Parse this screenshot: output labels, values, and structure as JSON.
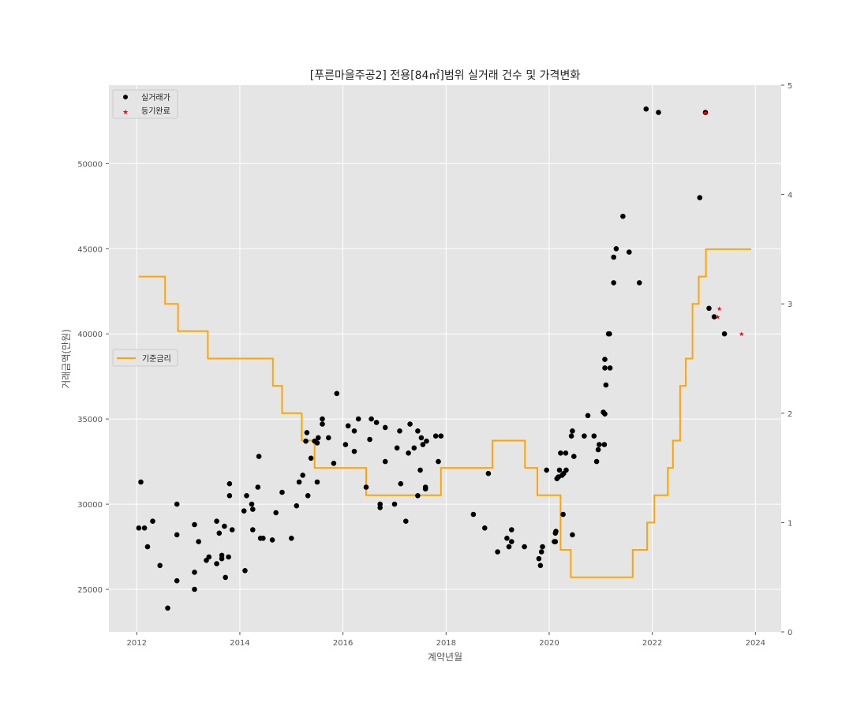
{
  "chart_data": {
    "type": "scatter",
    "title": "[푸른마을주공2] 전용[84㎡]범위 실거래 건수 및 가격변화",
    "xlabel": "계약년월",
    "ylabel": "거래금액(만원)",
    "xlim": [
      2011.46,
      2024.5
    ],
    "ylim": [
      22500,
      54600
    ],
    "y2lim": [
      0,
      5
    ],
    "x_ticks": [
      2012,
      2014,
      2016,
      2018,
      2020,
      2022,
      2024
    ],
    "y_ticks": [
      25000,
      30000,
      35000,
      40000,
      45000,
      50000
    ],
    "y2_ticks": [
      0,
      1,
      2,
      3,
      4,
      5
    ],
    "grid": true,
    "colors": {
      "plot_bg": "#e5e5e5",
      "grid": "#ffffff",
      "trade": "#000000",
      "registered": "#ff0000",
      "rate": "#ffa500"
    },
    "legend_top": {
      "position": "top-left",
      "entries": [
        "실거래가",
        "등기완료"
      ]
    },
    "legend_rate": {
      "position": "center-left",
      "entries": [
        "기준금리"
      ]
    },
    "series": [
      {
        "name": "실거래가",
        "kind": "scatter",
        "points": [
          [
            2012.04,
            28600
          ],
          [
            2012.08,
            31300
          ],
          [
            2012.15,
            28600
          ],
          [
            2012.21,
            27500
          ],
          [
            2012.31,
            29000
          ],
          [
            2012.45,
            26400
          ],
          [
            2012.6,
            23900
          ],
          [
            2012.78,
            30000
          ],
          [
            2012.78,
            28200
          ],
          [
            2012.78,
            25500
          ],
          [
            2013.12,
            28800
          ],
          [
            2013.12,
            26000
          ],
          [
            2013.12,
            25000
          ],
          [
            2013.2,
            27800
          ],
          [
            2013.35,
            26700
          ],
          [
            2013.4,
            26900
          ],
          [
            2013.55,
            29000
          ],
          [
            2013.55,
            26500
          ],
          [
            2013.6,
            28300
          ],
          [
            2013.65,
            26800
          ],
          [
            2013.65,
            27000
          ],
          [
            2013.7,
            28700
          ],
          [
            2013.72,
            25700
          ],
          [
            2013.78,
            26900
          ],
          [
            2013.8,
            30500
          ],
          [
            2013.8,
            31200
          ],
          [
            2013.85,
            28500
          ],
          [
            2014.08,
            29600
          ],
          [
            2014.1,
            26100
          ],
          [
            2014.13,
            30500
          ],
          [
            2014.23,
            30000
          ],
          [
            2014.25,
            29700
          ],
          [
            2014.25,
            28500
          ],
          [
            2014.35,
            31000
          ],
          [
            2014.37,
            32800
          ],
          [
            2014.4,
            28000
          ],
          [
            2014.45,
            28000
          ],
          [
            2014.63,
            27900
          ],
          [
            2014.7,
            29500
          ],
          [
            2014.82,
            30700
          ],
          [
            2015.0,
            28000
          ],
          [
            2015.1,
            29900
          ],
          [
            2015.15,
            31300
          ],
          [
            2015.22,
            31700
          ],
          [
            2015.28,
            33700
          ],
          [
            2015.3,
            34200
          ],
          [
            2015.32,
            30500
          ],
          [
            2015.38,
            32700
          ],
          [
            2015.45,
            33700
          ],
          [
            2015.5,
            33600
          ],
          [
            2015.5,
            31300
          ],
          [
            2015.52,
            33900
          ],
          [
            2015.6,
            34700
          ],
          [
            2015.6,
            35000
          ],
          [
            2015.72,
            33900
          ],
          [
            2015.82,
            32400
          ],
          [
            2015.88,
            36500
          ],
          [
            2016.05,
            33500
          ],
          [
            2016.1,
            34600
          ],
          [
            2016.22,
            34300
          ],
          [
            2016.22,
            33100
          ],
          [
            2016.3,
            35000
          ],
          [
            2016.45,
            31000
          ],
          [
            2016.52,
            33800
          ],
          [
            2016.55,
            35000
          ],
          [
            2016.65,
            34800
          ],
          [
            2016.72,
            29800
          ],
          [
            2016.72,
            30000
          ],
          [
            2016.82,
            34500
          ],
          [
            2016.82,
            32500
          ],
          [
            2017.0,
            30000
          ],
          [
            2017.05,
            33300
          ],
          [
            2017.1,
            34300
          ],
          [
            2017.12,
            31200
          ],
          [
            2017.22,
            29000
          ],
          [
            2017.27,
            33000
          ],
          [
            2017.3,
            34700
          ],
          [
            2017.38,
            33300
          ],
          [
            2017.45,
            34300
          ],
          [
            2017.45,
            30500
          ],
          [
            2017.5,
            32000
          ],
          [
            2017.52,
            33900
          ],
          [
            2017.55,
            33500
          ],
          [
            2017.6,
            31000
          ],
          [
            2017.6,
            30900
          ],
          [
            2017.62,
            33700
          ],
          [
            2017.8,
            34000
          ],
          [
            2017.85,
            32500
          ],
          [
            2017.9,
            34000
          ],
          [
            2018.53,
            29400
          ],
          [
            2018.75,
            28600
          ],
          [
            2018.82,
            31800
          ],
          [
            2019.0,
            27200
          ],
          [
            2019.18,
            28000
          ],
          [
            2019.22,
            27500
          ],
          [
            2019.27,
            28500
          ],
          [
            2019.27,
            27800
          ],
          [
            2019.52,
            27500
          ],
          [
            2019.8,
            26800
          ],
          [
            2019.83,
            26400
          ],
          [
            2019.85,
            27200
          ],
          [
            2019.87,
            27500
          ],
          [
            2019.95,
            32000
          ],
          [
            2020.1,
            27800
          ],
          [
            2020.12,
            27800
          ],
          [
            2020.12,
            28300
          ],
          [
            2020.13,
            28400
          ],
          [
            2020.15,
            31500
          ],
          [
            2020.18,
            31600
          ],
          [
            2020.2,
            32000
          ],
          [
            2020.22,
            33000
          ],
          [
            2020.25,
            31700
          ],
          [
            2020.27,
            29400
          ],
          [
            2020.28,
            31800
          ],
          [
            2020.32,
            33000
          ],
          [
            2020.33,
            32000
          ],
          [
            2020.43,
            34000
          ],
          [
            2020.45,
            28200
          ],
          [
            2020.45,
            34300
          ],
          [
            2020.48,
            32800
          ],
          [
            2020.68,
            34000
          ],
          [
            2020.75,
            35200
          ],
          [
            2020.87,
            34000
          ],
          [
            2020.92,
            32500
          ],
          [
            2020.95,
            33200
          ],
          [
            2020.97,
            33500
          ],
          [
            2021.05,
            35400
          ],
          [
            2021.07,
            33500
          ],
          [
            2021.08,
            38000
          ],
          [
            2021.08,
            38500
          ],
          [
            2021.08,
            35300
          ],
          [
            2021.1,
            37000
          ],
          [
            2021.15,
            40000
          ],
          [
            2021.17,
            40000
          ],
          [
            2021.18,
            38000
          ],
          [
            2021.25,
            44500
          ],
          [
            2021.25,
            43000
          ],
          [
            2021.3,
            45000
          ],
          [
            2021.43,
            46900
          ],
          [
            2021.55,
            44800
          ],
          [
            2021.75,
            43000
          ],
          [
            2021.88,
            53200
          ],
          [
            2022.12,
            53000
          ],
          [
            2022.92,
            48000
          ],
          [
            2023.03,
            53000
          ],
          [
            2023.1,
            41500
          ],
          [
            2023.2,
            41000
          ],
          [
            2023.4,
            40000
          ]
        ]
      },
      {
        "name": "등기완료",
        "kind": "scatter",
        "points": [
          [
            2023.03,
            53000
          ],
          [
            2023.27,
            41000
          ],
          [
            2023.3,
            41500
          ],
          [
            2023.73,
            40000
          ]
        ]
      },
      {
        "name": "기준금리",
        "kind": "step",
        "axis": "right",
        "points": [
          [
            2012.04,
            3.25
          ],
          [
            2012.55,
            3.25
          ],
          [
            2012.55,
            3.0
          ],
          [
            2012.8,
            3.0
          ],
          [
            2012.8,
            2.75
          ],
          [
            2013.38,
            2.75
          ],
          [
            2013.38,
            2.5
          ],
          [
            2014.64,
            2.5
          ],
          [
            2014.64,
            2.25
          ],
          [
            2014.82,
            2.25
          ],
          [
            2014.82,
            2.0
          ],
          [
            2015.2,
            2.0
          ],
          [
            2015.2,
            1.75
          ],
          [
            2015.45,
            1.75
          ],
          [
            2015.45,
            1.5
          ],
          [
            2016.45,
            1.5
          ],
          [
            2016.45,
            1.25
          ],
          [
            2017.9,
            1.25
          ],
          [
            2017.9,
            1.5
          ],
          [
            2018.9,
            1.5
          ],
          [
            2018.9,
            1.75
          ],
          [
            2019.53,
            1.75
          ],
          [
            2019.53,
            1.5
          ],
          [
            2019.77,
            1.5
          ],
          [
            2019.77,
            1.25
          ],
          [
            2020.22,
            1.25
          ],
          [
            2020.22,
            0.75
          ],
          [
            2020.42,
            0.75
          ],
          [
            2020.42,
            0.5
          ],
          [
            2021.62,
            0.5
          ],
          [
            2021.62,
            0.75
          ],
          [
            2021.9,
            0.75
          ],
          [
            2021.9,
            1.0
          ],
          [
            2022.04,
            1.0
          ],
          [
            2022.04,
            1.25
          ],
          [
            2022.3,
            1.25
          ],
          [
            2022.3,
            1.5
          ],
          [
            2022.4,
            1.5
          ],
          [
            2022.4,
            1.75
          ],
          [
            2022.54,
            1.75
          ],
          [
            2022.54,
            2.25
          ],
          [
            2022.65,
            2.25
          ],
          [
            2022.65,
            2.5
          ],
          [
            2022.78,
            2.5
          ],
          [
            2022.78,
            3.0
          ],
          [
            2022.9,
            3.0
          ],
          [
            2022.9,
            3.25
          ],
          [
            2023.04,
            3.25
          ],
          [
            2023.04,
            3.5
          ],
          [
            2023.92,
            3.5
          ]
        ]
      }
    ]
  }
}
